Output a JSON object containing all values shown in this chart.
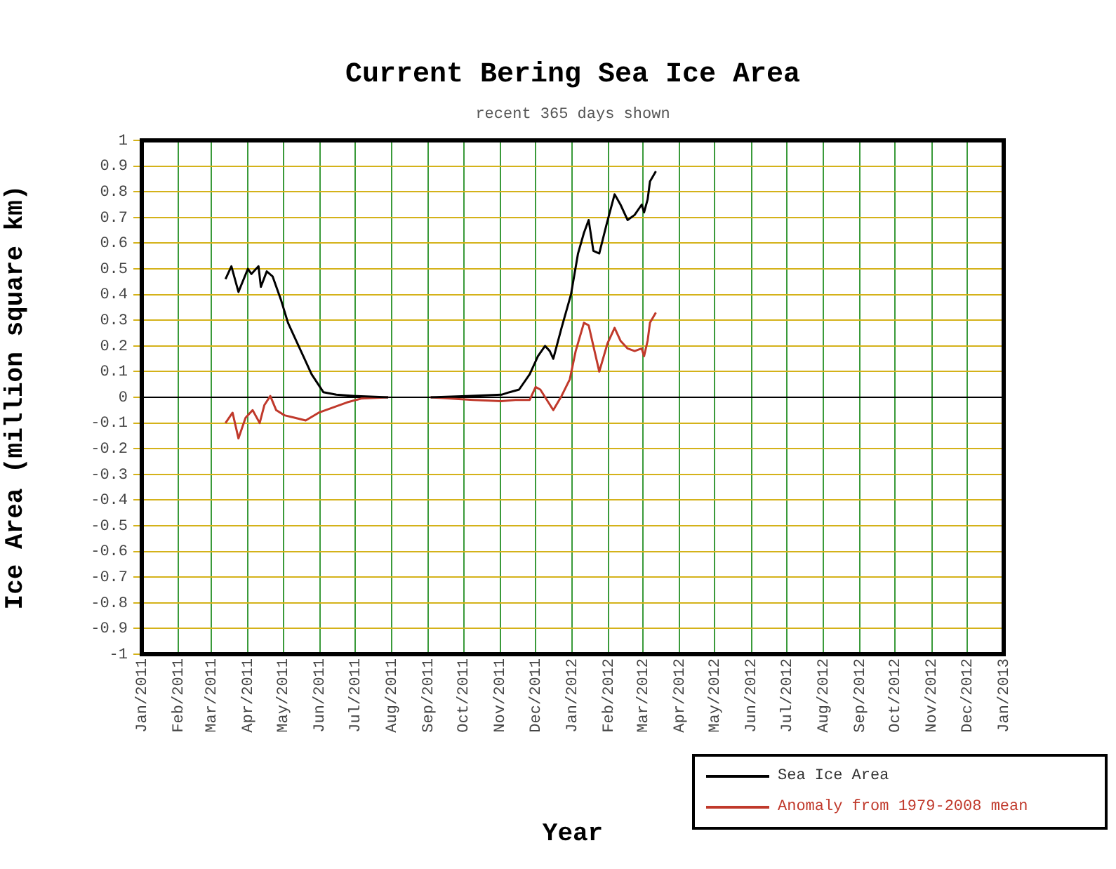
{
  "chart_data": {
    "type": "line",
    "title": "Current Bering Sea Ice Area",
    "subtitle": "recent 365 days shown",
    "xlabel": "Year",
    "ylabel": "Ice Area (million square km)",
    "xlim": [
      "2011-01-01",
      "2013-01-01"
    ],
    "xticks": [
      {
        "value": "2011-01-01",
        "label": "Jan/2011"
      },
      {
        "value": "2011-02-01",
        "label": "Feb/2011"
      },
      {
        "value": "2011-03-01",
        "label": "Mar/2011"
      },
      {
        "value": "2011-04-01",
        "label": "Apr/2011"
      },
      {
        "value": "2011-05-01",
        "label": "May/2011"
      },
      {
        "value": "2011-06-01",
        "label": "Jun/2011"
      },
      {
        "value": "2011-07-01",
        "label": "Jul/2011"
      },
      {
        "value": "2011-08-01",
        "label": "Aug/2011"
      },
      {
        "value": "2011-09-01",
        "label": "Sep/2011"
      },
      {
        "value": "2011-10-01",
        "label": "Oct/2011"
      },
      {
        "value": "2011-11-01",
        "label": "Nov/2011"
      },
      {
        "value": "2011-12-01",
        "label": "Dec/2011"
      },
      {
        "value": "2012-01-01",
        "label": "Jan/2012"
      },
      {
        "value": "2012-02-01",
        "label": "Feb/2012"
      },
      {
        "value": "2012-03-01",
        "label": "Mar/2012"
      },
      {
        "value": "2012-04-01",
        "label": "Apr/2012"
      },
      {
        "value": "2012-05-01",
        "label": "May/2012"
      },
      {
        "value": "2012-06-01",
        "label": "Jun/2012"
      },
      {
        "value": "2012-07-01",
        "label": "Jul/2012"
      },
      {
        "value": "2012-08-01",
        "label": "Aug/2012"
      },
      {
        "value": "2012-09-01",
        "label": "Sep/2012"
      },
      {
        "value": "2012-10-01",
        "label": "Oct/2012"
      },
      {
        "value": "2012-11-01",
        "label": "Nov/2012"
      },
      {
        "value": "2012-12-01",
        "label": "Dec/2012"
      },
      {
        "value": "2013-01-01",
        "label": "Jan/2013"
      }
    ],
    "ylim": [
      -1,
      1
    ],
    "yticks": [
      -1,
      -0.9,
      -0.8,
      -0.7,
      -0.6,
      -0.5,
      -0.4,
      -0.3,
      -0.2,
      -0.1,
      0,
      0.1,
      0.2,
      0.3,
      0.4,
      0.5,
      0.6,
      0.7,
      0.8,
      0.9,
      1
    ],
    "grid": true,
    "legend": "bottom right",
    "marker": "none",
    "line_style": "solid",
    "ref_lines": [
      {
        "axis": "y",
        "value": 0,
        "color": "#000000"
      }
    ],
    "series": [
      {
        "name": "Sea Ice Area",
        "color": "#000000",
        "x": [
          "2011-03-13",
          "2011-03-18",
          "2011-03-24",
          "2011-04-01",
          "2011-04-04",
          "2011-04-10",
          "2011-04-12",
          "2011-04-17",
          "2011-04-22",
          "2011-04-29",
          "2011-05-05",
          "2011-05-14",
          "2011-05-25",
          "2011-06-04",
          "2011-06-15",
          "2011-07-01",
          "2011-07-29",
          "2011-08-15",
          "2011-09-03",
          "2011-10-04",
          "2011-11-02",
          "2011-11-09",
          "2011-11-17",
          "2011-11-26",
          "2011-12-03",
          "2011-12-09",
          "2011-12-13",
          "2011-12-16",
          "2011-12-23",
          "2011-12-31",
          "2012-01-06",
          "2012-01-11",
          "2012-01-15",
          "2012-01-19",
          "2012-01-24",
          "2012-01-30",
          "2012-02-06",
          "2012-02-11",
          "2012-02-17",
          "2012-02-23",
          "2012-02-29",
          "2012-03-02",
          "2012-03-05",
          "2012-03-07",
          "2012-03-12"
        ],
        "values": [
          0.46,
          0.51,
          0.41,
          0.5,
          0.48,
          0.51,
          0.43,
          0.49,
          0.47,
          0.38,
          0.29,
          0.2,
          0.09,
          0.02,
          0.01,
          0.005,
          0,
          null,
          0,
          0.005,
          0.01,
          0.02,
          0.03,
          0.09,
          0.16,
          0.2,
          0.18,
          0.15,
          0.27,
          0.4,
          0.56,
          0.64,
          0.69,
          0.57,
          0.56,
          0.67,
          0.79,
          0.75,
          0.69,
          0.71,
          0.75,
          0.72,
          0.77,
          0.84,
          0.88
        ]
      },
      {
        "name": "Anomaly from 1979-2008 mean",
        "color": "#c0392b",
        "x": [
          "2011-03-13",
          "2011-03-19",
          "2011-03-24",
          "2011-03-30",
          "2011-04-05",
          "2011-04-11",
          "2011-04-15",
          "2011-04-20",
          "2011-04-25",
          "2011-05-02",
          "2011-05-11",
          "2011-05-20",
          "2011-05-31",
          "2011-06-12",
          "2011-06-24",
          "2011-07-06",
          "2011-07-29",
          "2011-08-15",
          "2011-09-03",
          "2011-10-09",
          "2011-11-02",
          "2011-11-14",
          "2011-11-26",
          "2011-12-01",
          "2011-12-05",
          "2011-12-16",
          "2011-12-23",
          "2011-12-30",
          "2012-01-04",
          "2012-01-11",
          "2012-01-15",
          "2012-01-24",
          "2012-01-31",
          "2012-02-06",
          "2012-02-11",
          "2012-02-17",
          "2012-02-23",
          "2012-02-29",
          "2012-03-02",
          "2012-03-05",
          "2012-03-07",
          "2012-03-12"
        ],
        "values": [
          -0.1,
          -0.06,
          -0.16,
          -0.08,
          -0.05,
          -0.1,
          -0.03,
          0.005,
          -0.05,
          -0.07,
          -0.08,
          -0.09,
          -0.06,
          -0.04,
          -0.02,
          -0.005,
          0,
          null,
          0,
          -0.01,
          -0.015,
          -0.01,
          -0.01,
          0.04,
          0.03,
          -0.05,
          0.005,
          0.07,
          0.18,
          0.29,
          0.28,
          0.1,
          0.21,
          0.27,
          0.22,
          0.19,
          0.18,
          0.19,
          0.16,
          0.22,
          0.29,
          0.33
        ]
      }
    ]
  }
}
